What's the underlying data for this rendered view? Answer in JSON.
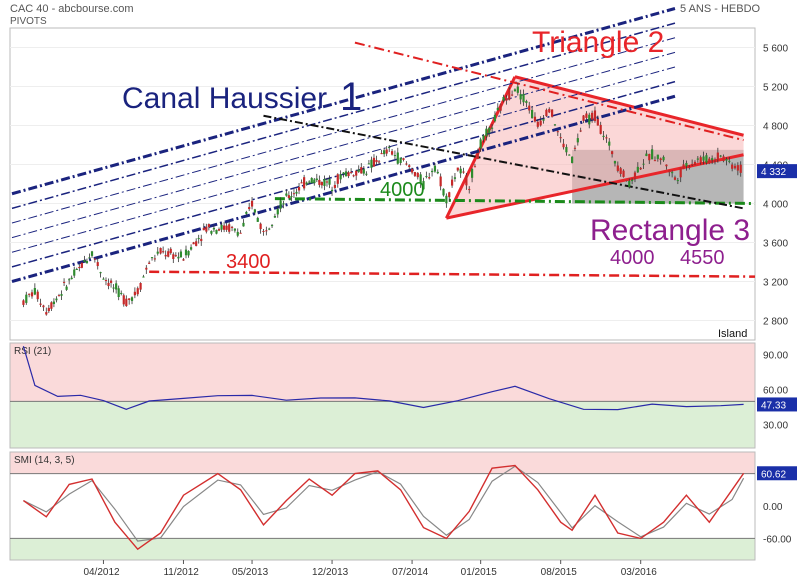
{
  "header": {
    "left_title": "CAC 40 - abcbourse.com",
    "left_sub": "PIVOTS",
    "right_title": "5 ANS - HEBDO"
  },
  "chart_data": [
    {
      "type": "candlestick",
      "name": "price",
      "ylim": [
        2600,
        5800
      ],
      "y_ticks": [
        2800,
        3200,
        3600,
        4000,
        4400,
        4800,
        5200,
        5600
      ],
      "y_tick_labels": [
        "2 800",
        "3 200",
        "3 600",
        "4 000",
        "4 400",
        "4 800",
        "5 200",
        "5 600"
      ],
      "last_value": 4332,
      "last_value_label": "4 332",
      "series_points": [
        [
          "2011-09",
          3000
        ],
        [
          "2011-10",
          3100
        ],
        [
          "2011-11",
          2900
        ],
        [
          "2012-01",
          3200
        ],
        [
          "2012-03",
          3500
        ],
        [
          "2012-04",
          3250
        ],
        [
          "2012-06",
          3000
        ],
        [
          "2012-07",
          3100
        ],
        [
          "2012-08",
          3400
        ],
        [
          "2012-09",
          3500
        ],
        [
          "2012-11",
          3450
        ],
        [
          "2013-01",
          3750
        ],
        [
          "2013-03",
          3750
        ],
        [
          "2013-04",
          3700
        ],
        [
          "2013-05",
          4000
        ],
        [
          "2013-06",
          3700
        ],
        [
          "2013-07",
          3900
        ],
        [
          "2013-08",
          4050
        ],
        [
          "2013-10",
          4250
        ],
        [
          "2013-12",
          4200
        ],
        [
          "2014-01",
          4300
        ],
        [
          "2014-03",
          4350
        ],
        [
          "2014-05",
          4550
        ],
        [
          "2014-06",
          4450
        ],
        [
          "2014-07",
          4350
        ],
        [
          "2014-08",
          4200
        ],
        [
          "2014-09",
          4400
        ],
        [
          "2014-10",
          4050
        ],
        [
          "2014-11",
          4350
        ],
        [
          "2014-12",
          4200
        ],
        [
          "2015-01",
          4600
        ],
        [
          "2015-02",
          4800
        ],
        [
          "2015-03",
          5050
        ],
        [
          "2015-04",
          5200
        ],
        [
          "2015-05",
          5050
        ],
        [
          "2015-06",
          4800
        ],
        [
          "2015-07",
          5000
        ],
        [
          "2015-08",
          4650
        ],
        [
          "2015-09",
          4450
        ],
        [
          "2015-10",
          4850
        ],
        [
          "2015-11",
          4900
        ],
        [
          "2015-12",
          4650
        ],
        [
          "2016-01",
          4400
        ],
        [
          "2016-02",
          4200
        ],
        [
          "2016-03",
          4400
        ],
        [
          "2016-04",
          4500
        ],
        [
          "2016-05",
          4450
        ],
        [
          "2016-06",
          4250
        ],
        [
          "2016-07",
          4400
        ],
        [
          "2016-08",
          4450
        ],
        [
          "2016-09",
          4450
        ],
        [
          "2016-10",
          4500
        ],
        [
          "2016-11",
          4400
        ],
        [
          "2016-12",
          4332
        ]
      ],
      "annotations": {
        "canal_text": "Canal Haussier",
        "canal_num": "1",
        "triangle_text": "Triangle 2",
        "rectangle_text": "Rectangle 3",
        "level_3400": "3400",
        "level_4000": "4000",
        "rect_low": "4000",
        "rect_high": "4550",
        "island": "Island"
      }
    },
    {
      "type": "line",
      "name": "rsi",
      "title": "RSI (21)",
      "ylim": [
        10,
        100
      ],
      "y_ticks": [
        30,
        60,
        90
      ],
      "y_tick_labels": [
        "30.00",
        "60.00",
        "90.00"
      ],
      "threshold": 50,
      "last_value": 47.33,
      "last_value_label": "47.33",
      "points": [
        [
          "2011-09",
          95
        ],
        [
          "2011-10",
          65
        ],
        [
          "2011-12",
          55
        ],
        [
          "2012-02",
          55
        ],
        [
          "2012-04",
          50
        ],
        [
          "2012-06",
          45
        ],
        [
          "2012-08",
          50
        ],
        [
          "2012-11",
          55
        ],
        [
          "2013-02",
          54
        ],
        [
          "2013-05",
          56
        ],
        [
          "2013-08",
          53
        ],
        [
          "2013-11",
          55
        ],
        [
          "2014-02",
          54
        ],
        [
          "2014-05",
          52
        ],
        [
          "2014-08",
          47
        ],
        [
          "2014-11",
          48
        ],
        [
          "2015-02",
          57
        ],
        [
          "2015-04",
          60
        ],
        [
          "2015-07",
          52
        ],
        [
          "2015-10",
          46
        ],
        [
          "2016-01",
          45
        ],
        [
          "2016-04",
          47
        ],
        [
          "2016-07",
          45
        ],
        [
          "2016-10",
          49
        ],
        [
          "2016-12",
          47.33
        ]
      ]
    },
    {
      "type": "line",
      "name": "smi",
      "title": "SMI (14, 3, 5)",
      "ylim": [
        -100,
        100
      ],
      "y_ticks": [
        -60,
        0
      ],
      "y_tick_labels": [
        "-60.00",
        "0.00"
      ],
      "threshold_lines": [
        60,
        -60
      ],
      "last_value": 60.62,
      "last_value_label": "60.62",
      "points": [
        [
          "2011-09",
          10
        ],
        [
          "2011-11",
          -20
        ],
        [
          "2012-01",
          40
        ],
        [
          "2012-03",
          50
        ],
        [
          "2012-05",
          -30
        ],
        [
          "2012-07",
          -80
        ],
        [
          "2012-09",
          -50
        ],
        [
          "2012-11",
          20
        ],
        [
          "2013-02",
          60
        ],
        [
          "2013-04",
          30
        ],
        [
          "2013-06",
          -35
        ],
        [
          "2013-08",
          10
        ],
        [
          "2013-10",
          50
        ],
        [
          "2013-12",
          20
        ],
        [
          "2014-02",
          60
        ],
        [
          "2014-04",
          65
        ],
        [
          "2014-06",
          30
        ],
        [
          "2014-08",
          -40
        ],
        [
          "2014-10",
          -60
        ],
        [
          "2014-12",
          -10
        ],
        [
          "2015-02",
          70
        ],
        [
          "2015-04",
          75
        ],
        [
          "2015-06",
          30
        ],
        [
          "2015-08",
          -30
        ],
        [
          "2015-09",
          -45
        ],
        [
          "2015-11",
          20
        ],
        [
          "2016-01",
          -50
        ],
        [
          "2016-03",
          -60
        ],
        [
          "2016-05",
          -30
        ],
        [
          "2016-07",
          20
        ],
        [
          "2016-09",
          -30
        ],
        [
          "2016-11",
          30
        ],
        [
          "2016-12",
          60.62
        ]
      ]
    }
  ],
  "x_axis": {
    "tick_labels": [
      "04/2012",
      "11/2012",
      "05/2013",
      "12/2013",
      "07/2014",
      "01/2015",
      "08/2015",
      "03/2016"
    ],
    "tick_dates": [
      "2012-04",
      "2012-11",
      "2013-05",
      "2013-12",
      "2014-07",
      "2015-01",
      "2015-08",
      "2016-03"
    ]
  }
}
